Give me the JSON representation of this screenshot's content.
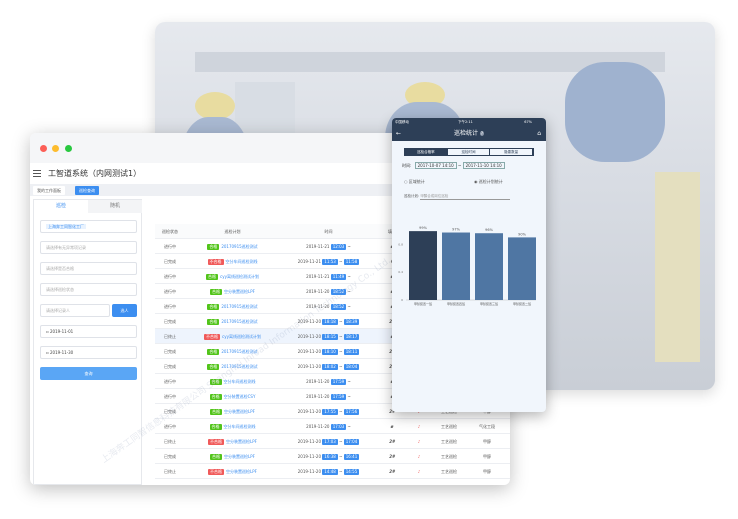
{
  "colors": {
    "accent": "#3c8ef0",
    "pass": "#52c41a",
    "fail": "#f05a5a",
    "phone_dark": "#2d3f57",
    "bar_highlight": "#2d3f57",
    "bar": "#4f76a3"
  },
  "app": {
    "title": "工智道系统（内网测试1）",
    "tabs": [
      "我的工作面板",
      "巡检查询"
    ]
  },
  "filters": {
    "tabs": [
      "巡检",
      "随机"
    ],
    "factory_tag": "上海奔工同智化工厂",
    "placeholders": [
      "请选择有无异常项记录",
      "请选择是否合格",
      "请选择巡检状态",
      "请选择记录人"
    ],
    "select_button": "选人",
    "date_from": "2019-11-01",
    "date_to": "2019-11-30",
    "query_button": "查询"
  },
  "table": {
    "headers": [
      "巡检状态",
      "巡检计划",
      "时间",
      "填写"
    ],
    "rows": [
      [
        "进行中",
        "合格",
        "20170915巡检测试",
        "2019-11-21",
        "12:03",
        "",
        "ø",
        "",
        "",
        ""
      ],
      [
        "已完成",
        "不合格",
        "空分车间巡检测线",
        "2019-11-21",
        "11:53",
        "11:58",
        "#",
        "",
        "",
        ""
      ],
      [
        "进行中",
        "合格",
        "cyy离线巡检测试计划",
        "2019-11-21",
        "11:49",
        "",
        "ø",
        "",
        "",
        ""
      ],
      [
        "进行中",
        "合格",
        "空分装置巡检LPF",
        "2019-11-20",
        "18:52",
        "",
        "ø",
        "",
        "",
        ""
      ],
      [
        "进行中",
        "合格",
        "20170915巡检测试",
        "2019-11-20",
        "18:52",
        "",
        "ø",
        "",
        "",
        ""
      ],
      [
        "已完成",
        "合格",
        "20170915巡检测试",
        "2019-11-20",
        "18:18",
        "18:39",
        "2#",
        "",
        "",
        ""
      ],
      [
        "已终止",
        "不合格",
        "cyy离线巡检测试计划",
        "2019-11-20",
        "18:15",
        "18:17",
        "ø",
        "",
        "",
        ""
      ],
      [
        "已完成",
        "合格",
        "20170915巡检测试",
        "2019-11-20",
        "18:10",
        "18:11",
        "2#",
        "",
        "",
        ""
      ],
      [
        "已完成",
        "合格",
        "20170915巡检测试",
        "2019-11-20",
        "18:02",
        "18:04",
        "2#",
        "",
        "",
        ""
      ],
      [
        "进行中",
        "合格",
        "空分车间巡检测线",
        "2019-11-20",
        "17:59",
        "",
        "ø",
        "",
        "",
        ""
      ],
      [
        "进行中",
        "合格",
        "空分装置巡检CSY",
        "2019-11-20",
        "17:59",
        "",
        "ø",
        "",
        "",
        ""
      ],
      [
        "已完成",
        "合格",
        "空分装置巡检LPF",
        "2019-11-20",
        "17:55",
        "17:56",
        "2#",
        "♪",
        "工艺巡检",
        "甲醇"
      ],
      [
        "进行中",
        "合格",
        "空分车间巡检测线",
        "2019-11-20",
        "17:03",
        "",
        "ø",
        "♪",
        "工艺巡检",
        "气化工段"
      ],
      [
        "已终止",
        "不合格",
        "空分装置巡检LPF",
        "2019-11-20",
        "17:03",
        "17:04",
        "2#",
        "♪",
        "工艺巡检",
        "甲醇"
      ],
      [
        "已完成",
        "合格",
        "空分装置巡检LPF",
        "2019-11-20",
        "16:38",
        "16:41",
        "2#",
        "♪",
        "工艺巡检",
        "甲醇"
      ],
      [
        "已终止",
        "不合格",
        "空分装置巡检LPF",
        "2019-11-20",
        "14:48",
        "14:55",
        "2#",
        "♪",
        "工艺巡检",
        "甲醇"
      ]
    ]
  },
  "phone": {
    "carrier": "中国移动",
    "clock": "下午2:11",
    "battery": "67%",
    "title": "巡检统计",
    "seg": [
      "巡检合格率",
      "巡检时间",
      "隐患数量"
    ],
    "time_label": "时间:",
    "time_from": "2017-10-07 14:10",
    "time_sep": "~",
    "time_to": "2017-11-10 14:10",
    "radio": [
      "区域统计",
      "巡检计划统计"
    ],
    "plan_label": "巡检计划:",
    "plan_value": "甲醇合成岗位巡检"
  },
  "chart_data": {
    "type": "bar",
    "categories": [
      "甲醇装置一班",
      "甲醇装置四班",
      "甲醇装置三班",
      "甲醇装置二班"
    ],
    "values": [
      0.99,
      0.97,
      0.96,
      0.9
    ],
    "data_labels": [
      "99%",
      "97%",
      "96%",
      "90%"
    ],
    "yticks": [
      "0",
      "0.4",
      "0.8"
    ],
    "ylim": [
      0,
      1.15
    ]
  },
  "watermark": "上海奔工同智信息科技有限公司 Shanghai Inroad Information Technology Co., Ltd."
}
